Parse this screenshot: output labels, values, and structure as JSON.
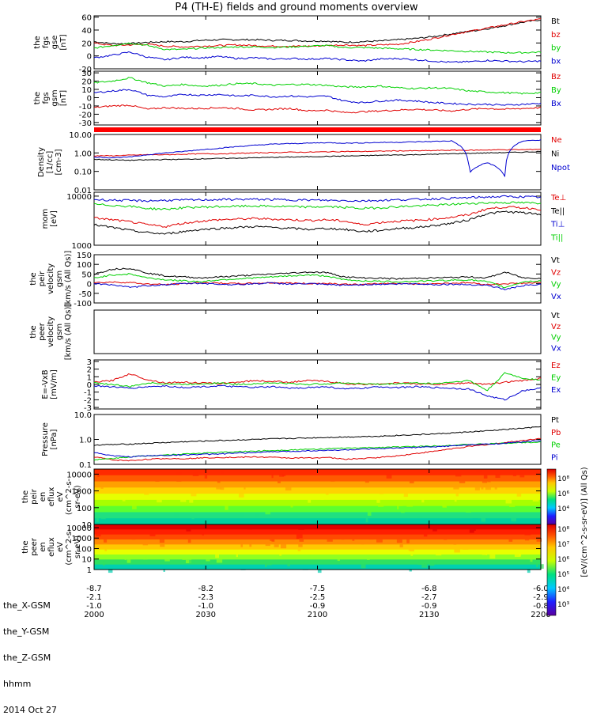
{
  "title": "P4 (TH-E) fields and ground moments overview",
  "colors": {
    "black": "#000000",
    "red": "#e00000",
    "green": "#00d000",
    "blue": "#0000d0",
    "pink": "#e00000"
  },
  "chart_data": [
    {
      "type": "line",
      "ylabel": [
        "the",
        "fgs",
        "gse",
        "[nT]"
      ],
      "yticks": [
        "60",
        "40",
        "20",
        "0",
        "-20"
      ],
      "ylim": [
        -20,
        62
      ],
      "series": [
        {
          "name": "Bt",
          "color": "black",
          "values": [
            22,
            19,
            19,
            21,
            22,
            22,
            24,
            25,
            25,
            25,
            24,
            24,
            23,
            23,
            21,
            22,
            23,
            25,
            27,
            30,
            34,
            38,
            42,
            47,
            52,
            56
          ]
        },
        {
          "name": "bz",
          "color": "red",
          "values": [
            20,
            16,
            17,
            18,
            15,
            14,
            15,
            16,
            17,
            16,
            15,
            15,
            15,
            16,
            17,
            16,
            17,
            18,
            22,
            27,
            33,
            38,
            43,
            48,
            53,
            57
          ]
        },
        {
          "name": "by",
          "color": "green",
          "values": [
            12,
            16,
            20,
            16,
            10,
            10,
            12,
            13,
            14,
            14,
            13,
            14,
            15,
            16,
            13,
            13,
            12,
            11,
            10,
            9,
            8,
            7,
            6,
            5,
            5,
            6
          ]
        },
        {
          "name": "bx",
          "color": "blue",
          "values": [
            -3,
            1,
            6,
            -2,
            -6,
            -2,
            -3,
            -1,
            -4,
            -3,
            -5,
            -4,
            -5,
            -4,
            -6,
            -8,
            -5,
            -4,
            -6,
            -8,
            -10,
            -9,
            -7,
            -8,
            -9,
            -8
          ]
        }
      ]
    },
    {
      "type": "line",
      "ylabel": [
        "the",
        "fgs",
        "gsm",
        "[nT]"
      ],
      "yticks": [
        "30",
        "20",
        "10",
        "0",
        "-10",
        "-20",
        "-30"
      ],
      "ylim": [
        -33,
        32
      ],
      "series": [
        {
          "name": "Bz",
          "color": "red",
          "values": [
            -12,
            -10,
            -9,
            -14,
            -12,
            -13,
            -13,
            -12,
            -13,
            -15,
            -14,
            -13,
            -16,
            -15,
            -18,
            -17,
            -16,
            -15,
            -14,
            -15,
            -16,
            -14,
            -13,
            -14,
            -13,
            -12
          ]
        },
        {
          "name": "By",
          "color": "green",
          "values": [
            18,
            20,
            24,
            18,
            14,
            16,
            14,
            15,
            17,
            17,
            15,
            16,
            16,
            15,
            13,
            13,
            14,
            12,
            11,
            12,
            11,
            8,
            7,
            6,
            5,
            6
          ]
        },
        {
          "name": "Bx",
          "color": "blue",
          "values": [
            6,
            8,
            10,
            3,
            1,
            4,
            3,
            4,
            2,
            3,
            1,
            2,
            1,
            2,
            -4,
            -6,
            -4,
            -3,
            -4,
            -6,
            -7,
            -8,
            -8,
            -9,
            -8,
            -7
          ]
        }
      ]
    },
    {
      "type": "line",
      "ylabel": [
        "Density",
        "[1/cc]",
        "[cm-3]"
      ],
      "yticks": [
        "10.00",
        "1.00",
        "0.10",
        "0.01"
      ],
      "ylim": [
        0.01,
        10
      ],
      "log": true,
      "series": [
        {
          "name": "Ne",
          "color": "red",
          "values": [
            0.7,
            0.7,
            0.75,
            0.8,
            0.8,
            0.85,
            0.9,
            0.9,
            0.95,
            1.0,
            1.05,
            1.1,
            1.1,
            1.15,
            1.2,
            1.2,
            1.25,
            1.3,
            1.3,
            1.35,
            1.4,
            1.4,
            1.45,
            1.5,
            1.5,
            1.6
          ]
        },
        {
          "name": "Ni",
          "color": "black",
          "values": [
            0.45,
            0.42,
            0.4,
            0.42,
            0.44,
            0.45,
            0.48,
            0.5,
            0.52,
            0.55,
            0.58,
            0.6,
            0.62,
            0.65,
            0.68,
            0.7,
            0.75,
            0.78,
            0.8,
            0.85,
            0.9,
            0.95,
            1.0,
            1.05,
            1.1,
            1.2
          ]
        },
        {
          "name": "Npot",
          "color": "blue",
          "values": [
            0.6,
            0.55,
            0.6,
            0.8,
            1.0,
            1.2,
            1.5,
            1.8,
            2.2,
            2.6,
            3.0,
            3.2,
            3.4,
            3.6,
            3.4,
            3.5,
            3.7,
            3.8,
            4.0,
            4.2,
            4.5,
            0.08,
            0.3,
            0.05,
            4.5,
            5.0
          ]
        }
      ]
    },
    {
      "type": "line",
      "ylabel": [
        "mom",
        "[eV]"
      ],
      "yticks": [
        "10000",
        "1000"
      ],
      "ylim": [
        1000,
        12000
      ],
      "log": true,
      "series": [
        {
          "name": "Te⊥",
          "color": "red",
          "values": [
            3600,
            3300,
            3000,
            2600,
            2400,
            2800,
            3100,
            3300,
            3400,
            3500,
            3400,
            3300,
            3200,
            3300,
            3100,
            2600,
            2900,
            3100,
            3200,
            3400,
            3700,
            4200,
            5500,
            6000,
            5800,
            5400
          ]
        },
        {
          "name": "Te||",
          "color": "black",
          "values": [
            2600,
            2300,
            2000,
            1800,
            1700,
            1900,
            2100,
            2200,
            2300,
            2400,
            2300,
            2200,
            2100,
            2200,
            2100,
            1900,
            2000,
            2200,
            2300,
            2500,
            2800,
            3300,
            4400,
            4800,
            4600,
            4200
          ]
        },
        {
          "name": "Ti⊥",
          "color": "blue",
          "values": [
            8500,
            8300,
            8100,
            8000,
            8200,
            8300,
            8400,
            8500,
            8600,
            8600,
            8500,
            8400,
            8300,
            8200,
            8100,
            8000,
            8200,
            8400,
            8600,
            8800,
            9000,
            9300,
            9600,
            9800,
            9700,
            9500
          ]
        },
        {
          "name": "Ti||",
          "color": "green",
          "values": [
            6800,
            6500,
            6200,
            5600,
            5400,
            5800,
            6000,
            6100,
            6200,
            6300,
            6200,
            6100,
            6000,
            6100,
            5900,
            5600,
            5800,
            6100,
            6300,
            6500,
            6800,
            7100,
            7300,
            7400,
            7300,
            7200
          ]
        }
      ]
    },
    {
      "type": "line",
      "ylabel": [
        "the",
        "peir",
        "velocity",
        "gsm",
        "[km/s (All Qs)]"
      ],
      "yticks": [
        "150",
        "100",
        "50",
        "0",
        "-50",
        "-100"
      ],
      "ylim": [
        -100,
        150
      ],
      "series": [
        {
          "name": "Vt",
          "color": "black",
          "values": [
            50,
            75,
            80,
            55,
            40,
            35,
            30,
            35,
            40,
            45,
            50,
            55,
            60,
            58,
            35,
            30,
            28,
            25,
            28,
            30,
            32,
            35,
            30,
            60,
            30,
            28
          ]
        },
        {
          "name": "Vz",
          "color": "red",
          "values": [
            5,
            8,
            6,
            -2,
            -5,
            0,
            5,
            3,
            0,
            2,
            5,
            3,
            0,
            2,
            -3,
            -5,
            0,
            2,
            -2,
            0,
            3,
            5,
            -5,
            0,
            2,
            5
          ]
        },
        {
          "name": "Vy",
          "color": "green",
          "values": [
            30,
            45,
            50,
            30,
            20,
            15,
            10,
            20,
            25,
            30,
            35,
            40,
            45,
            40,
            20,
            15,
            12,
            10,
            12,
            15,
            18,
            20,
            10,
            -20,
            10,
            15
          ]
        },
        {
          "name": "Vx",
          "color": "blue",
          "values": [
            0,
            -5,
            -20,
            -10,
            -5,
            0,
            2,
            -3,
            -5,
            0,
            3,
            -2,
            0,
            -5,
            -8,
            -5,
            -3,
            -2,
            0,
            -5,
            -3,
            -5,
            -8,
            -30,
            -10,
            -5
          ]
        }
      ]
    },
    {
      "type": "line",
      "ylabel": [
        "the",
        "peer",
        "velocity",
        "gsm",
        "[km/s (All Qs)]"
      ],
      "yticks": [],
      "ylim": [
        -100,
        150
      ],
      "series": [
        {
          "name": "Vt",
          "color": "black",
          "values": []
        },
        {
          "name": "Vz",
          "color": "red",
          "values": []
        },
        {
          "name": "Vy",
          "color": "green",
          "values": []
        },
        {
          "name": "Vx",
          "color": "blue",
          "values": []
        }
      ]
    },
    {
      "type": "line",
      "ylabel": [
        "E=-VxB",
        "[mV/m]"
      ],
      "yticks": [
        "3",
        "2",
        "1",
        "0",
        "-1",
        "-2",
        "-3"
      ],
      "ylim": [
        -3.2,
        3.2
      ],
      "series": [
        {
          "name": "Ez",
          "color": "red",
          "values": [
            0.3,
            0.5,
            1.4,
            0.6,
            0.2,
            0.3,
            0.2,
            0.1,
            0.3,
            0.5,
            0.4,
            0.3,
            0.5,
            0.4,
            0.1,
            0.0,
            0.1,
            0.2,
            0.1,
            0.0,
            0.1,
            0.2,
            0.0,
            0.3,
            0.5,
            0.8
          ]
        },
        {
          "name": "Ey",
          "color": "green",
          "values": [
            0.2,
            0.0,
            -0.3,
            0.2,
            0.1,
            0.0,
            0.1,
            0.2,
            0.0,
            0.1,
            0.2,
            0.1,
            0.0,
            0.1,
            0.2,
            0.1,
            0.0,
            0.1,
            0.2,
            0.1,
            0.3,
            0.5,
            -0.8,
            1.5,
            0.8,
            0.6
          ]
        },
        {
          "name": "Ex",
          "color": "blue",
          "values": [
            -0.2,
            -0.3,
            -0.5,
            -0.3,
            -0.2,
            -0.4,
            -0.3,
            -0.2,
            -0.3,
            -0.4,
            -0.3,
            -0.5,
            -0.4,
            -0.3,
            -0.6,
            -0.5,
            -0.3,
            -0.4,
            -0.3,
            -0.4,
            -0.5,
            -0.6,
            -1.5,
            -2.0,
            -0.8,
            -0.5
          ]
        }
      ]
    },
    {
      "type": "line",
      "ylabel": [
        "Pressure",
        "[nPa]"
      ],
      "yticks": [
        "10.0",
        "1.0",
        "0.1"
      ],
      "ylim": [
        0.1,
        10
      ],
      "log": true,
      "series": [
        {
          "name": "Pt",
          "color": "black",
          "values": [
            0.6,
            0.62,
            0.65,
            0.7,
            0.75,
            0.8,
            0.85,
            0.9,
            0.95,
            1.0,
            1.05,
            1.1,
            1.15,
            1.2,
            1.25,
            1.3,
            1.35,
            1.45,
            1.55,
            1.65,
            1.8,
            2.0,
            2.2,
            2.5,
            2.8,
            3.2
          ]
        },
        {
          "name": "Pb",
          "color": "red",
          "values": [
            0.2,
            0.15,
            0.14,
            0.16,
            0.17,
            0.17,
            0.18,
            0.19,
            0.19,
            0.2,
            0.19,
            0.18,
            0.18,
            0.19,
            0.16,
            0.17,
            0.19,
            0.22,
            0.27,
            0.33,
            0.42,
            0.52,
            0.62,
            0.75,
            0.9,
            1.1
          ]
        },
        {
          "name": "Pe",
          "color": "green",
          "values": [
            0.15,
            0.17,
            0.2,
            0.22,
            0.24,
            0.26,
            0.28,
            0.3,
            0.32,
            0.34,
            0.36,
            0.38,
            0.4,
            0.42,
            0.44,
            0.46,
            0.48,
            0.5,
            0.52,
            0.55,
            0.58,
            0.62,
            0.66,
            0.7,
            0.75,
            0.8
          ]
        },
        {
          "name": "Pi",
          "color": "blue",
          "values": [
            0.3,
            0.22,
            0.2,
            0.22,
            0.23,
            0.24,
            0.25,
            0.26,
            0.28,
            0.3,
            0.32,
            0.33,
            0.35,
            0.36,
            0.38,
            0.4,
            0.42,
            0.45,
            0.48,
            0.5,
            0.55,
            0.6,
            0.65,
            0.7,
            0.8,
            0.9
          ]
        }
      ]
    },
    {
      "type": "heatmap",
      "ylabel": [
        "the",
        "peir",
        "en",
        "eflux",
        "eV",
        "(cm^2-s-",
        "sr-eV)"
      ],
      "yticks": [
        "10000",
        "1000",
        "100",
        "10"
      ],
      "ylim": [
        10,
        20000
      ],
      "log": true
    },
    {
      "type": "heatmap",
      "ylabel": [
        "the",
        "peer",
        "en",
        "eflux",
        "eV",
        "(cm^2-s-",
        "sr-eV)"
      ],
      "yticks": [
        "10000",
        "1000",
        "100",
        "10",
        "1"
      ],
      "ylim": [
        1,
        20000
      ],
      "log": true
    }
  ],
  "colorbar": {
    "ticks_top": [
      "10⁸",
      "10⁶",
      "10⁴"
    ],
    "ticks_bottom": [
      "10⁸",
      "10⁷",
      "10⁶",
      "10⁵",
      "10⁴",
      "10³"
    ],
    "label": "[eV/(cm^2-s-sr-eV)] (All Qs)"
  },
  "x_axis": {
    "tick_labels": [
      {
        "x": "-8.7",
        "y": "-2.1",
        "z": "-1.0",
        "t": "2000"
      },
      {
        "x": "-8.2",
        "y": "-2.3",
        "z": "-1.0",
        "t": "2030"
      },
      {
        "x": "-7.5",
        "y": "-2.5",
        "z": "-0.9",
        "t": "2100"
      },
      {
        "x": "-6.8",
        "y": "-2.7",
        "z": "-0.9",
        "t": "2130"
      },
      {
        "x": "-6.0",
        "y": "-2.9",
        "z": "-0.8",
        "t": "2200"
      }
    ],
    "row_labels": [
      "the_X-GSM",
      "the_Y-GSM",
      "the_Z-GSM",
      "hhmm"
    ],
    "date": "2014 Oct 27"
  }
}
